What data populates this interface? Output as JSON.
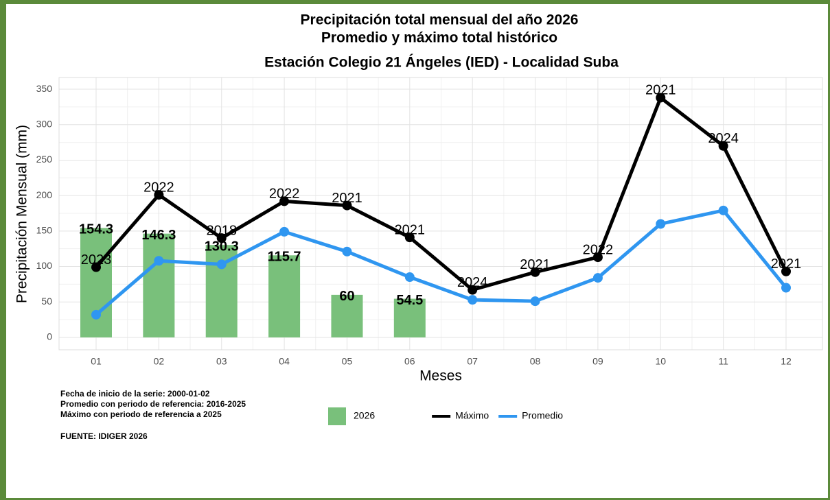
{
  "chart_data": {
    "type": "bar_line",
    "title": "Precipitación total mensual del año 2026",
    "subtitle": "Promedio y máximo total histórico",
    "subtitle2": "Estación Colegio 21 Ángeles (IED) - Localidad Suba",
    "x_label": "Meses",
    "y_label": "Precipitación Mensual (mm)",
    "categories": [
      "01",
      "02",
      "03",
      "04",
      "05",
      "06",
      "07",
      "08",
      "09",
      "10",
      "11",
      "12"
    ],
    "series": [
      {
        "name": "2026",
        "kind": "bar",
        "color": "#79c07b",
        "values": [
          154.3,
          146.3,
          130.3,
          115.7,
          60,
          54.5,
          null,
          null,
          null,
          null,
          null,
          null
        ]
      },
      {
        "name": "Máximo",
        "kind": "line",
        "color": "#000000",
        "values": [
          99,
          201,
          140,
          192,
          186,
          141,
          67,
          92,
          113,
          338,
          270,
          93
        ],
        "point_labels": [
          "2023",
          "2022",
          "2018",
          "2022",
          "2021",
          "2021",
          "2024",
          "2021",
          "2022",
          "2021",
          "2024",
          "2021"
        ]
      },
      {
        "name": "Promedio",
        "kind": "line",
        "color": "#2f96f0",
        "values": [
          32,
          108,
          103,
          149,
          121,
          85,
          53,
          51,
          84,
          160,
          179,
          70
        ]
      }
    ],
    "ylim": [
      -17.5,
      366.5
    ],
    "yticks": [
      0,
      50,
      100,
      150,
      200,
      250,
      300,
      350
    ],
    "grid": true,
    "notes": [
      "Fecha de inicio de la serie: 2000-01-02",
      "Promedio con periodo de referencia: 2016-2025",
      "Máximo con periodo de referencia a 2025"
    ],
    "source": "FUENTE: IDIGER 2026"
  }
}
